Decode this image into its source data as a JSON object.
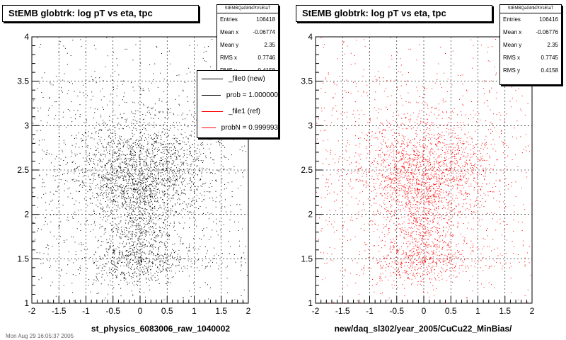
{
  "chart_data": [
    {
      "type": "scatter",
      "title": "StEMB globtrk: log pT vs eta, tpc",
      "xlabel": "st_physics_6083006_raw_1040002",
      "ylabel": "",
      "xlim": [
        -2,
        2
      ],
      "ylim": [
        1,
        4
      ],
      "xticks": [
        "-2",
        "-1.5",
        "-1",
        "-0.5",
        "0",
        "0.5",
        "1",
        "1.5",
        "2"
      ],
      "yticks": [
        "1",
        "1.5",
        "2",
        "2.5",
        "3",
        "3.5",
        "4"
      ],
      "grid": true,
      "marker_color": "#000000",
      "stats": {
        "name": "StEMBQaGlrtkPtVsEtaT",
        "rows": [
          {
            "label": "Entries",
            "value": "106418"
          },
          {
            "label": "Mean x",
            "value": "-0.06774"
          },
          {
            "label": "Mean y",
            "value": "2.35"
          },
          {
            "label": "RMS x",
            "value": "0.7746"
          },
          {
            "label": "RMS y",
            "value": "0.4158"
          }
        ]
      },
      "legend": {
        "placement": "top-right",
        "entries": [
          {
            "label": "_file0 (new)",
            "color": "#000000"
          },
          {
            "label": "prob = 1.000000",
            "color": "#000000"
          },
          {
            "label": "_file1 (ref)",
            "color": "#ff0000"
          },
          {
            "label": "probN = 0.999993",
            "color": "#ff0000"
          }
        ]
      }
    },
    {
      "type": "scatter",
      "title": "StEMB globtrk: log pT vs eta, tpc",
      "xlabel": "new/daq_sl302/year_2005/CuCu22_MinBias/",
      "ylabel": "",
      "xlim": [
        -2,
        2
      ],
      "ylim": [
        1,
        4
      ],
      "xticks": [
        "-2",
        "-1.5",
        "-1",
        "-0.5",
        "0",
        "0.5",
        "1",
        "1.5",
        "2"
      ],
      "yticks": [
        "1",
        "1.5",
        "2",
        "2.5",
        "3",
        "3.5",
        "4"
      ],
      "grid": true,
      "marker_color": "#ff0000",
      "stats": {
        "name": "StEMBQaGlrtkPtVsEtaT",
        "rows": [
          {
            "label": "Entries",
            "value": "106416"
          },
          {
            "label": "Mean x",
            "value": "-0.06776"
          },
          {
            "label": "Mean y",
            "value": "2.35"
          },
          {
            "label": "RMS x",
            "value": "0.7745"
          },
          {
            "label": "RMS y",
            "value": "0.4158"
          }
        ]
      }
    }
  ],
  "footer": "Mon Aug 29 16:05:37 2005"
}
